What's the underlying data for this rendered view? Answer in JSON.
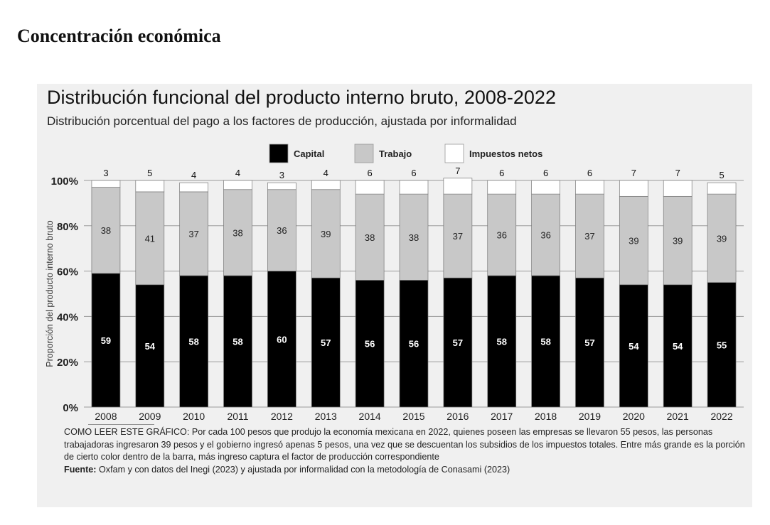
{
  "page": {
    "heading": "Concentración económica"
  },
  "chart_data": {
    "type": "bar",
    "stacked": true,
    "title": "Distribución funcional del producto interno bruto, 2008-2022",
    "subtitle": "Distribución porcentual del pago a los factores de producción, ajustada por informalidad",
    "ylabel": "Proporción del producto interno bruto",
    "ylim": [
      0,
      100
    ],
    "yticks": [
      "0%",
      "20%",
      "40%",
      "60%",
      "80%",
      "100%"
    ],
    "grid": true,
    "legend_position": "top-center",
    "categories": [
      "2008",
      "2009",
      "2010",
      "2011",
      "2012",
      "2013",
      "2014",
      "2015",
      "2016",
      "2017",
      "2018",
      "2019",
      "2020",
      "2021",
      "2022"
    ],
    "series": [
      {
        "name": "Capital",
        "color": "#000000",
        "values": [
          59,
          54,
          58,
          58,
          60,
          57,
          56,
          56,
          57,
          58,
          58,
          57,
          54,
          54,
          55
        ]
      },
      {
        "name": "Trabajo",
        "color": "#c8c8c8",
        "values": [
          38,
          41,
          37,
          38,
          36,
          39,
          38,
          38,
          37,
          36,
          36,
          37,
          39,
          39,
          39
        ]
      },
      {
        "name": "Impuestos netos",
        "color": "#ffffff",
        "values": [
          3,
          5,
          4,
          4,
          3,
          4,
          6,
          6,
          7,
          6,
          6,
          6,
          7,
          7,
          5
        ]
      }
    ]
  },
  "notes": {
    "how_to_read": "COMO LEER ESTE GRÁFICO: Por cada 100 pesos que produjo la economía mexicana en 2022, quienes poseen las empresas se llevaron 55 pesos, las personas trabajadoras ingresaron 39 pesos y el gobierno ingresó apenas 5 pesos, una vez que se descuentan los subsidios de los impuestos totales. Entre más grande es la porción de cierto color dentro de la barra, más ingreso captura el factor de producción correspondiente",
    "source_label": "Fuente:",
    "source_text": "Oxfam y con datos del Inegi (2023) y ajustada por informalidad con la metodología de Conasami (2023)"
  }
}
